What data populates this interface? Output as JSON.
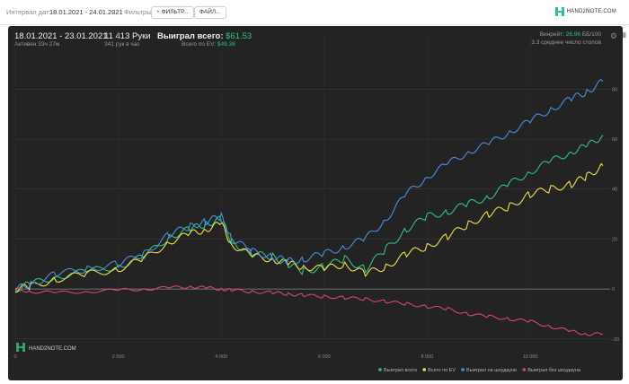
{
  "toolbar": {
    "date_label": "Интервал дат:",
    "date_value": "18.01.2021 - 24.01.2021",
    "filters_label": "Фильтры:",
    "filter_button": "ФИЛЬТР...",
    "file_button": "ФАЙЛ...",
    "brand": "HAND2NOTE.COM"
  },
  "stats": {
    "period": "18.01.2021 - 23.01.2021",
    "active": "Активен 33ч 27м",
    "hands": "11 413 Руки",
    "hands_per_hour": "341 рук в час",
    "won_label": "Выиграл всего:",
    "won_value": "$61.53",
    "ev_label": "Всего по EV:",
    "ev_value": "$49.38",
    "winrate_label": "Винрейт:",
    "winrate_value": "26.96",
    "winrate_unit": "ББ/100",
    "tables": "3.3 среднее число столов"
  },
  "watermark": "HAND2NOTE.COM",
  "colors": {
    "won": "#33c27f",
    "ev": "#f0e04a",
    "showdown": "#4a8fe0",
    "no_showdown": "#d9466e",
    "panel": "#232323"
  },
  "chart_data": {
    "type": "line",
    "x_ticks": [
      "0",
      "2 000",
      "4 000",
      "6 000",
      "8 000",
      "10 000"
    ],
    "y_ticks": [
      "-20",
      "0",
      "20",
      "40",
      "60",
      "80"
    ],
    "xlim": [
      0,
      11413
    ],
    "ylim": [
      -24,
      88
    ],
    "series": [
      {
        "name": "Выиграл всего",
        "color": "#33c27f",
        "x": [
          0,
          300,
          800,
          1400,
          2000,
          2500,
          3000,
          3400,
          3700,
          4000,
          4200,
          4600,
          5000,
          5300,
          5600,
          6000,
          6400,
          6800,
          7200,
          7600,
          8000,
          8400,
          8800,
          9200,
          9600,
          10000,
          10400,
          10800,
          11100,
          11413
        ],
        "y": [
          0,
          2,
          5,
          7,
          9,
          13,
          21,
          24,
          26,
          28,
          19,
          14,
          13,
          10,
          7,
          9,
          12,
          8,
          16,
          24,
          29,
          31,
          34,
          37,
          42,
          47,
          51,
          55,
          57,
          61.53
        ]
      },
      {
        "name": "Всего по EV",
        "color": "#f0e04a",
        "x": [
          0,
          300,
          800,
          1400,
          2000,
          2500,
          3000,
          3400,
          3700,
          4000,
          4200,
          4600,
          5000,
          5300,
          5600,
          6000,
          6400,
          6800,
          7200,
          7600,
          8000,
          8400,
          8800,
          9200,
          9600,
          10000,
          10400,
          10800,
          11100,
          11413
        ],
        "y": [
          0,
          1,
          4,
          6,
          8,
          12,
          19,
          22,
          24,
          26,
          18,
          13,
          12,
          10,
          9,
          8,
          10,
          6,
          9,
          14,
          17,
          21,
          26,
          30,
          33,
          38,
          40,
          42,
          45,
          49.38
        ]
      },
      {
        "name": "Выиграл на шоудауне",
        "color": "#4a8fe0",
        "x": [
          0,
          300,
          800,
          1400,
          2000,
          2500,
          3000,
          3400,
          3700,
          4000,
          4200,
          4600,
          5000,
          5300,
          5600,
          6000,
          6400,
          6800,
          7200,
          7600,
          8000,
          8400,
          8800,
          9200,
          9600,
          10000,
          10400,
          10800,
          11100,
          11413
        ],
        "y": [
          0,
          2,
          6,
          8,
          10,
          14,
          22,
          25,
          27,
          29,
          20,
          15,
          13,
          11,
          12,
          14,
          17,
          20,
          28,
          38,
          45,
          50,
          55,
          58,
          63,
          67,
          72,
          76,
          79,
          83
        ]
      },
      {
        "name": "Выиграл без шоудауна",
        "color": "#d9466e",
        "x": [
          0,
          300,
          800,
          1400,
          2000,
          2500,
          3000,
          3400,
          3700,
          4000,
          4200,
          4600,
          5000,
          5300,
          5600,
          6000,
          6400,
          6800,
          7200,
          7600,
          8000,
          8400,
          8800,
          9200,
          9600,
          10000,
          10400,
          10800,
          11100,
          11413
        ],
        "y": [
          0,
          -1,
          -1.5,
          -1,
          -0.5,
          0,
          0.5,
          1,
          0.5,
          0,
          -0.5,
          -1,
          -1.5,
          -2,
          -2.5,
          -3,
          -3.5,
          -4,
          -5,
          -6,
          -7,
          -8,
          -10,
          -11,
          -12,
          -13,
          -15,
          -17,
          -18,
          -18
        ]
      }
    ]
  }
}
